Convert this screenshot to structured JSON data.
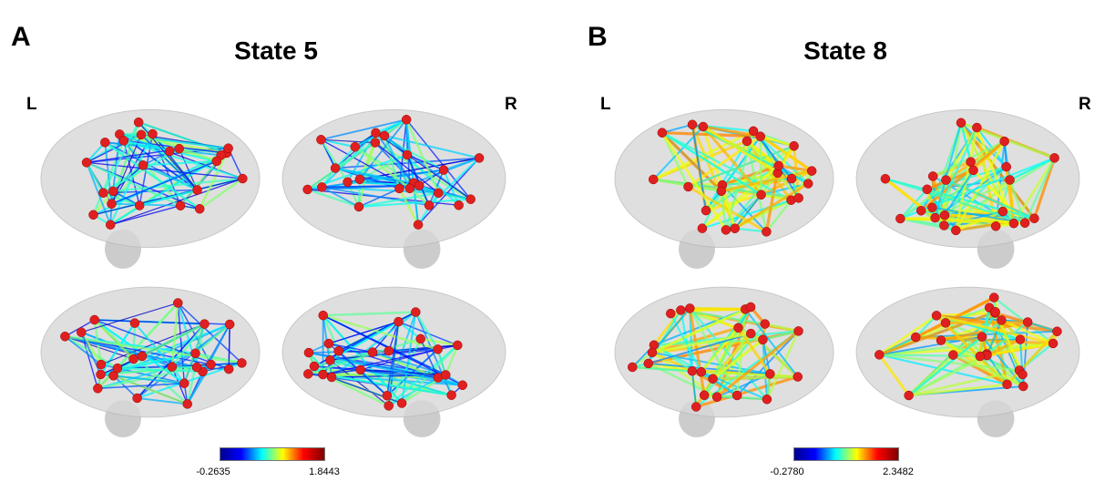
{
  "panels": [
    {
      "letter": "A",
      "title": "State 5",
      "left_label": "L",
      "right_label": "R",
      "colorbar": {
        "min": "-0.2635",
        "max": "1.8443",
        "colormap": "jet"
      },
      "views": [
        "left-lateral",
        "right-lateral",
        "left-medial",
        "right-medial"
      ]
    },
    {
      "letter": "B",
      "title": "State 8",
      "left_label": "L",
      "right_label": "R",
      "colorbar": {
        "min": "-0.2780",
        "max": "2.3482",
        "colormap": "jet"
      },
      "views": [
        "left-lateral",
        "right-lateral",
        "left-medial",
        "right-medial"
      ]
    }
  ],
  "colors": {
    "node": "#e02020",
    "brain": "#d8d8d8"
  }
}
